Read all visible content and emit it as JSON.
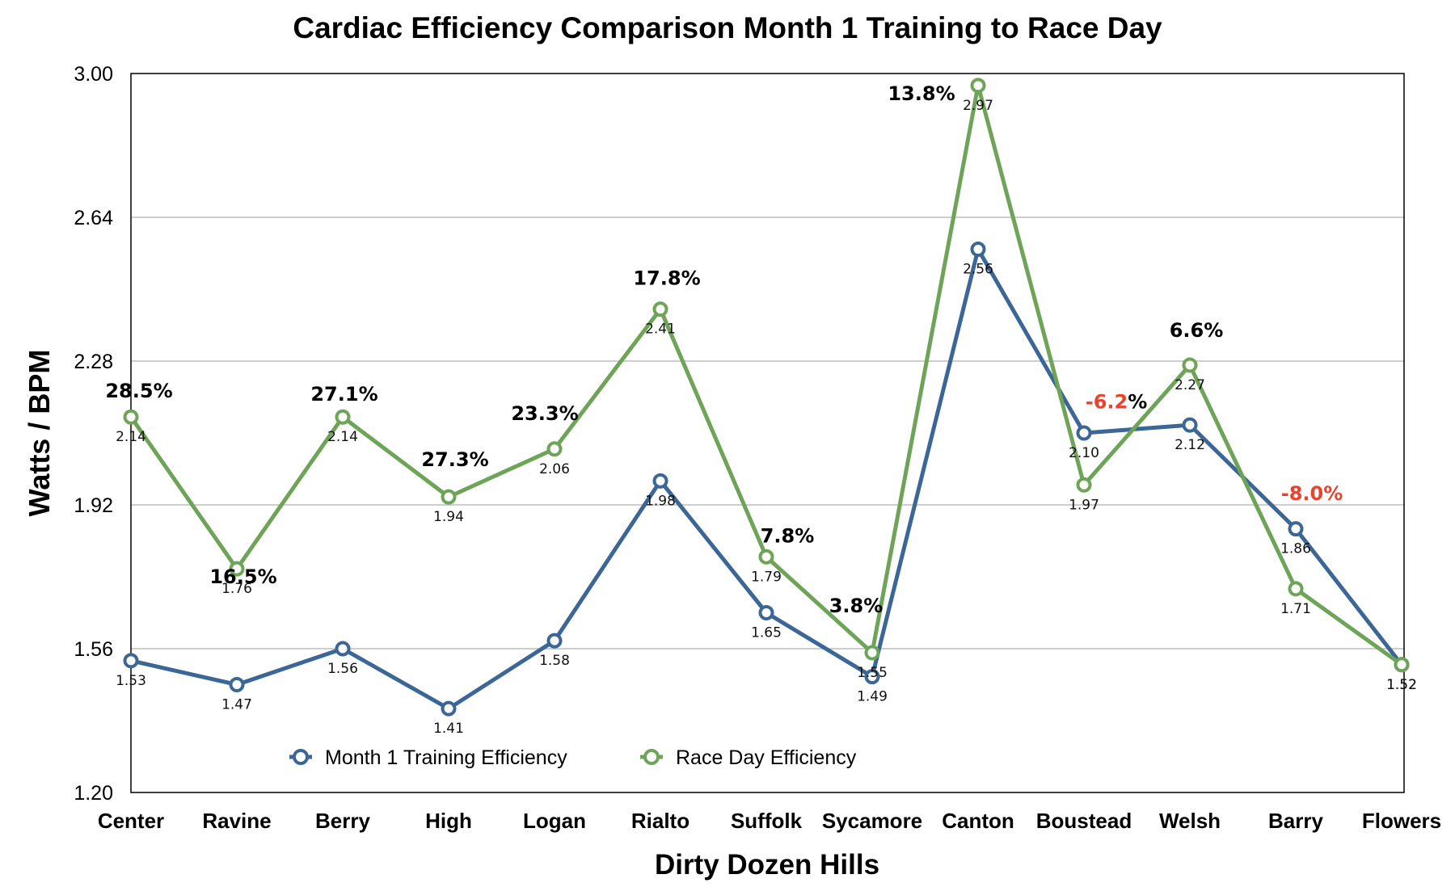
{
  "chart_data": {
    "type": "line",
    "title": "Cardiac Efficiency Comparison Month 1 Training to Race Day",
    "xlabel": "Dirty Dozen Hills",
    "ylabel": "Watts / BPM",
    "ylim": [
      1.2,
      3.0
    ],
    "yticks": [
      "1.20",
      "1.56",
      "1.92",
      "2.28",
      "2.64",
      "3.00"
    ],
    "grid": true,
    "legend_position": "bottom-center",
    "categories": [
      "Center",
      "Ravine",
      "Berry",
      "High",
      "Logan",
      "Rialto",
      "Suffolk",
      "Sycamore",
      "Canton",
      "Boustead",
      "Welsh",
      "Barry",
      "Flowers"
    ],
    "series": [
      {
        "name": "Month 1 Training Efficiency",
        "color": "#3b6696",
        "values": [
          1.53,
          1.47,
          1.56,
          1.41,
          1.58,
          1.98,
          1.65,
          1.49,
          2.56,
          2.1,
          2.12,
          1.86,
          1.52
        ],
        "labels": [
          "1.53",
          "1.47",
          "1.56",
          "1.41",
          "1.58",
          "1.98",
          "1.65",
          "1.49",
          "2.56",
          "2.10",
          "2.12",
          "1.86",
          "1.52"
        ]
      },
      {
        "name": "Race Day Efficiency",
        "color": "#6ea457",
        "values": [
          2.14,
          1.76,
          2.14,
          1.94,
          2.06,
          2.41,
          1.79,
          1.55,
          2.97,
          1.97,
          2.27,
          1.71,
          1.52
        ],
        "labels": [
          "2.14",
          "1.76",
          "2.14",
          "1.94",
          "2.06",
          "2.41",
          "1.79",
          "1.55",
          "2.97",
          "1.97",
          "2.27",
          "1.71",
          "1.52"
        ]
      }
    ],
    "annotations": [
      {
        "category": "Center",
        "text": "28.5%",
        "negative": false
      },
      {
        "category": "Ravine",
        "text": "16.5%",
        "negative": false
      },
      {
        "category": "Berry",
        "text": "27.1%",
        "negative": false
      },
      {
        "category": "High",
        "text": "27.3%",
        "negative": false
      },
      {
        "category": "Logan",
        "text": "23.3%",
        "negative": false
      },
      {
        "category": "Rialto",
        "text": "17.8%",
        "negative": false
      },
      {
        "category": "Suffolk",
        "text": "7.8%",
        "negative": false
      },
      {
        "category": "Sycamore",
        "text": "3.8%",
        "negative": false
      },
      {
        "category": "Canton",
        "text": "13.8%",
        "negative": false
      },
      {
        "category": "Boustead",
        "text": "-6.2",
        "suffix": "%",
        "negative": true
      },
      {
        "category": "Welsh",
        "text": "6.6%",
        "negative": false
      },
      {
        "category": "Barry",
        "text": "-8.0%",
        "negative": true
      }
    ],
    "colors": {
      "negative_annotation": "#e8432d",
      "grid": "#bdbdbd"
    }
  }
}
